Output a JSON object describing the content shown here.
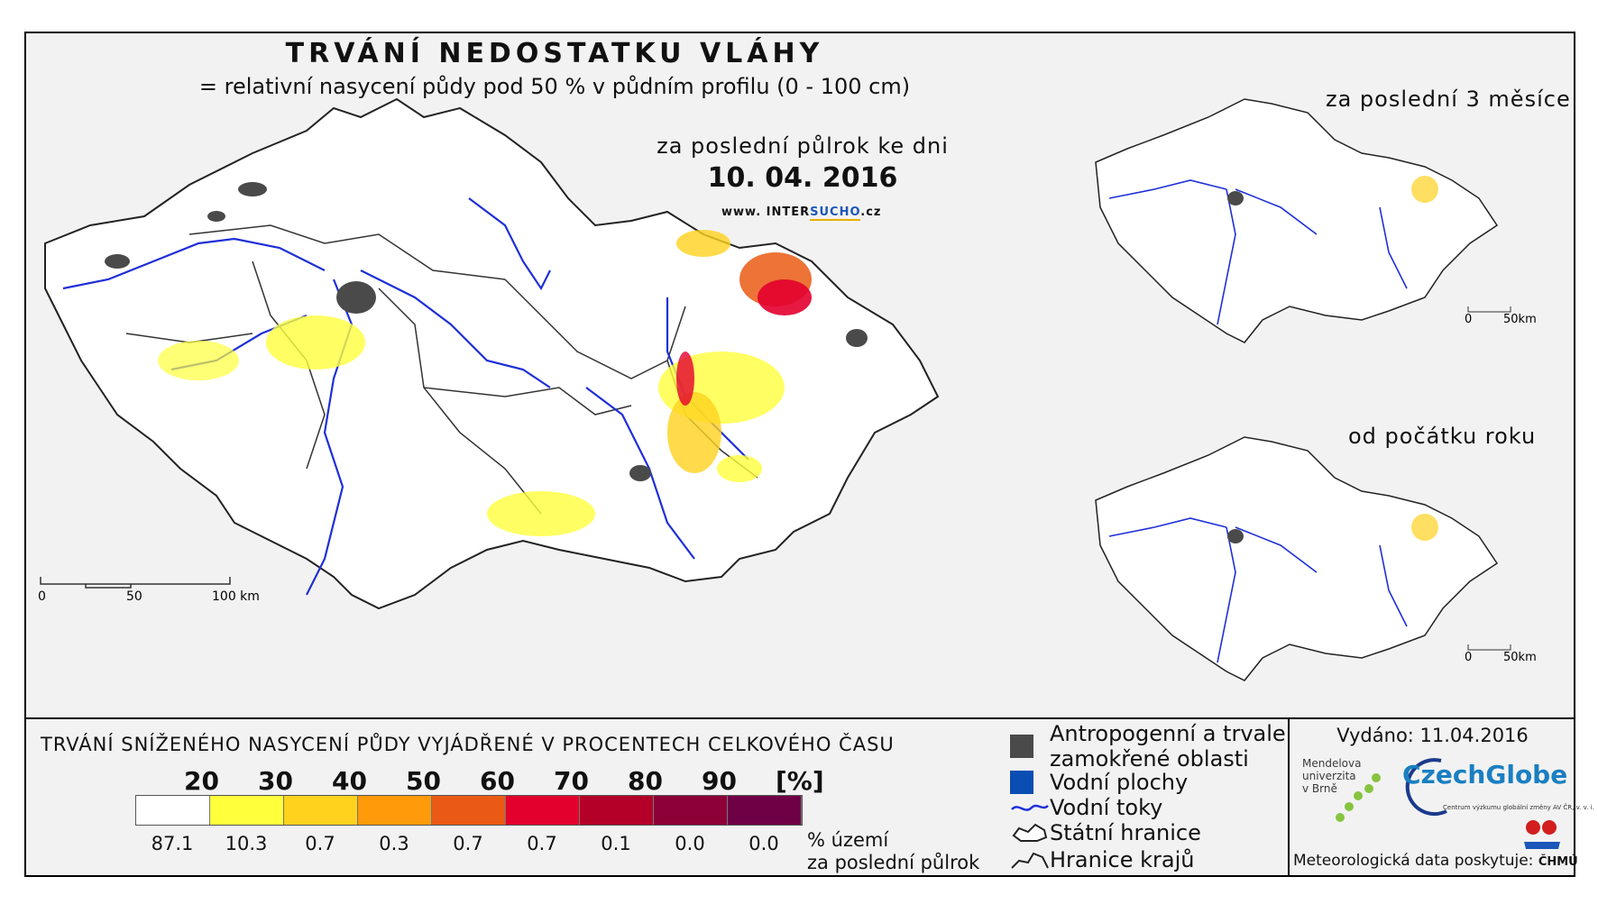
{
  "header": {
    "title": "TRVÁNÍ NEDOSTATKU VLÁHY",
    "subtitle": "= relativní nasycení půdy pod 50 % v půdním profilu (0 - 100 cm)",
    "period_label": "za poslední půlrok ke dni",
    "date": "10. 04. 2016",
    "web_prefix": "www. INTER",
    "web_highlight": "SUCHO",
    "web_suffix": ".cz"
  },
  "main_map": {
    "scale_labels": [
      "0",
      "50",
      "100 km"
    ]
  },
  "inset_maps": [
    {
      "label": "za poslední 3 měsíce",
      "scale_labels": [
        "0",
        "50km"
      ]
    },
    {
      "label": "od počátku roku",
      "scale_labels": [
        "0",
        "50km"
      ]
    }
  ],
  "legend": {
    "title": "TRVÁNÍ SNÍŽENÉHO NASYCENÍ PŮDY VYJÁDŘENÉ V PROCENTECH CELKOVÉHO ČASU",
    "ticks": [
      "20",
      "30",
      "40",
      "50",
      "60",
      "70",
      "80",
      "90",
      "[%]"
    ],
    "colors": [
      "#ffffff",
      "#ffff3c",
      "#ffd21e",
      "#ff9a0a",
      "#ea5a14",
      "#e3002d",
      "#b40028",
      "#8c0037",
      "#6e0046"
    ],
    "values": [
      "87.1",
      "10.3",
      "0.7",
      "0.3",
      "0.7",
      "0.7",
      "0.1",
      "0.0",
      "0.0"
    ],
    "unit_line1": "% území",
    "unit_line2": "za poslední půlrok"
  },
  "key": {
    "anthropogenic_line1": "Antropogenní a trvale",
    "anthropogenic_line2": "zamokřené oblasti",
    "water_areas": "Vodní plochy",
    "rivers": "Vodní toky",
    "state_border": "Státní hranice",
    "region_border": "Hranice krajů",
    "colors": {
      "anthropogenic": "#4a4a4a",
      "water": "#0a4db3",
      "river": "#1e2fd8"
    }
  },
  "footer": {
    "issued": "Vydáno: 11.04.2016",
    "mendel_line1": "Mendelova",
    "mendel_line2": "univerzita",
    "mendel_line3": "v Brně",
    "czechglobe": "CzechGlobe",
    "czechglobe_sub": "Centrum výzkumu globální změny AV ČR, v. v. i.",
    "meteo_label": "Meteorologická data poskytuje:",
    "chmu": "ČHMÚ"
  }
}
